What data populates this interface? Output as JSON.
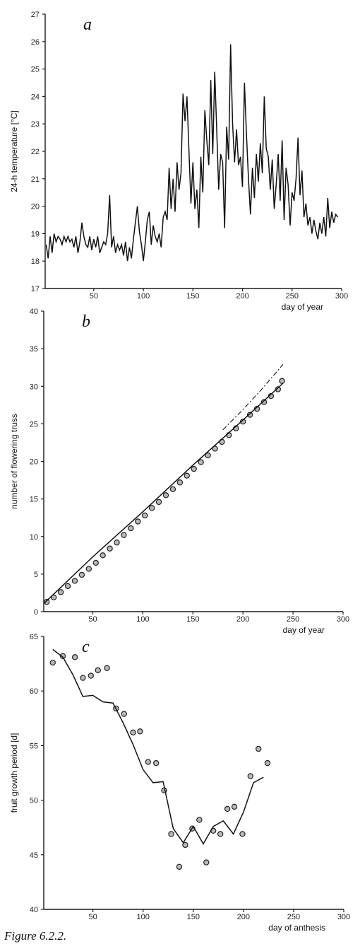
{
  "chart_data": [
    {
      "type": "line",
      "panel": "a",
      "title": "",
      "xlabel": "day of year",
      "ylabel": "24-h temperature [°C]",
      "xlim": [
        1,
        300
      ],
      "ylim": [
        17,
        27
      ],
      "xticks": [
        50,
        100,
        150,
        200,
        250,
        300
      ],
      "yticks": [
        17,
        18,
        19,
        20,
        21,
        22,
        23,
        24,
        25,
        26,
        27
      ],
      "series": [
        {
          "x": [
            2,
            4,
            6,
            8,
            10,
            12,
            14,
            16,
            18,
            20,
            22,
            24,
            26,
            28,
            30,
            32,
            34,
            36,
            38,
            40,
            42,
            44,
            46,
            48,
            50,
            52,
            54,
            56,
            58,
            60,
            62,
            64,
            66,
            68,
            70,
            72,
            74,
            76,
            78,
            80,
            82,
            84,
            86,
            88,
            90,
            92,
            94,
            96,
            98,
            100,
            102,
            104,
            106,
            108,
            110,
            112,
            114,
            116,
            118,
            120,
            122,
            124,
            126,
            128,
            130,
            132,
            134,
            136,
            138,
            140,
            142,
            144,
            146,
            148,
            150,
            152,
            154,
            156,
            158,
            160,
            162,
            164,
            166,
            168,
            170,
            172,
            174,
            176,
            178,
            180,
            182,
            184,
            186,
            188,
            190,
            192,
            194,
            196,
            198,
            200,
            202,
            204,
            206,
            208,
            210,
            212,
            214,
            216,
            218,
            220,
            222,
            224,
            226,
            228,
            230,
            232,
            234,
            236,
            238,
            240,
            242,
            244,
            246,
            248,
            250,
            252,
            254,
            256,
            258,
            260,
            262,
            264,
            266,
            268,
            270,
            272,
            274,
            276,
            278,
            280,
            282,
            284,
            286,
            288,
            290,
            292,
            294,
            296
          ],
          "y": [
            18.6,
            18.1,
            18.9,
            18.3,
            19.0,
            18.7,
            18.9,
            18.8,
            18.6,
            18.9,
            18.7,
            18.9,
            18.7,
            18.8,
            18.5,
            18.9,
            18.3,
            18.7,
            19.4,
            18.9,
            18.6,
            18.5,
            18.9,
            18.4,
            18.8,
            18.5,
            18.9,
            18.3,
            18.5,
            18.7,
            18.6,
            19.0,
            20.4,
            18.5,
            18.9,
            18.3,
            18.6,
            18.4,
            18.6,
            18.2,
            18.7,
            18.0,
            18.5,
            18.1,
            18.8,
            19.4,
            20.0,
            19.1,
            18.6,
            18.0,
            18.7,
            19.5,
            19.8,
            18.6,
            19.3,
            18.9,
            18.7,
            19.0,
            18.5,
            19.6,
            19.8,
            19.5,
            21.4,
            19.9,
            21.0,
            19.8,
            21.6,
            20.6,
            21.2,
            24.1,
            23.1,
            24.0,
            22.0,
            20.1,
            21.6,
            19.9,
            20.6,
            19.2,
            21.8,
            20.5,
            23.5,
            22.4,
            21.5,
            24.6,
            21.9,
            24.9,
            22.8,
            20.6,
            21.9,
            21.6,
            19.2,
            22.9,
            21.7,
            25.9,
            23.0,
            21.6,
            22.8,
            21.5,
            21.8,
            20.7,
            24.5,
            22.6,
            21.0,
            19.7,
            21.4,
            20.3,
            21.9,
            20.9,
            22.3,
            21.2,
            24.0,
            22.1,
            21.8,
            20.6,
            21.7,
            19.9,
            20.8,
            21.9,
            20.2,
            22.4,
            19.5,
            21.4,
            20.8,
            19.3,
            20.5,
            20.2,
            21.0,
            22.5,
            20.4,
            21.3,
            19.6,
            20.1,
            19.3,
            19.6,
            19.0,
            19.5,
            19.1,
            18.8,
            19.4,
            19.0,
            19.6,
            18.9,
            20.3,
            19.2,
            19.8,
            19.4,
            19.7,
            19.6
          ]
        }
      ]
    },
    {
      "type": "line",
      "panel": "b",
      "title": "",
      "xlabel": "day of year",
      "ylabel": "number of flowering truss",
      "xlim": [
        1,
        300
      ],
      "ylim": [
        0,
        40
      ],
      "xticks": [
        50,
        100,
        150,
        200,
        250,
        300
      ],
      "yticks": [
        0,
        5,
        10,
        15,
        20,
        25,
        30,
        35,
        40
      ],
      "series": [
        {
          "style": "observed-points",
          "x": [
            4,
            11,
            18,
            25,
            32,
            39,
            46,
            53,
            60,
            67,
            74,
            81,
            88,
            95,
            102,
            109,
            116,
            123,
            130,
            137,
            144,
            151,
            158,
            165,
            172,
            179,
            186,
            193,
            200,
            207,
            214,
            221,
            228,
            235,
            239
          ],
          "y": [
            1.3,
            1.9,
            2.6,
            3.4,
            4.1,
            4.9,
            5.7,
            6.5,
            7.5,
            8.4,
            9.2,
            10.2,
            11.1,
            12.0,
            12.8,
            13.8,
            14.6,
            15.5,
            16.3,
            17.2,
            18.1,
            19.0,
            19.9,
            20.8,
            21.7,
            22.6,
            23.5,
            24.4,
            25.3,
            26.2,
            27.0,
            27.9,
            28.7,
            29.6,
            30.7
          ]
        },
        {
          "style": "simulated-solid",
          "x": [
            2,
            50,
            100,
            150,
            200,
            240
          ],
          "y": [
            1.2,
            7.3,
            13.3,
            19.5,
            25.5,
            30.4
          ]
        },
        {
          "style": "simulated-dashdot",
          "x": [
            180,
            200,
            220,
            240
          ],
          "y": [
            24.2,
            26.9,
            29.8,
            32.9
          ]
        }
      ]
    },
    {
      "type": "line",
      "panel": "c",
      "title": "",
      "xlabel": "day of anthesis",
      "ylabel": "fruit growth period [d]",
      "xlim": [
        1,
        300
      ],
      "ylim": [
        40,
        65
      ],
      "xticks": [
        50,
        100,
        150,
        200,
        250,
        300
      ],
      "yticks": [
        40,
        45,
        50,
        55,
        60,
        65
      ],
      "series": [
        {
          "style": "observed-points",
          "x": [
            10,
            20,
            32,
            40,
            48,
            55,
            64,
            73,
            81,
            90,
            97,
            105,
            113,
            121,
            128,
            136,
            142,
            149,
            156,
            163,
            170,
            177,
            184,
            191,
            199,
            207,
            215,
            224
          ],
          "y": [
            62.6,
            63.2,
            63.1,
            61.2,
            61.4,
            61.9,
            62.1,
            58.4,
            57.9,
            56.2,
            56.3,
            53.5,
            53.4,
            50.9,
            46.9,
            43.9,
            45.9,
            47.4,
            48.2,
            44.3,
            47.2,
            46.9,
            49.2,
            49.4,
            46.9,
            52.2,
            54.7,
            53.4
          ]
        },
        {
          "style": "simulated-solid",
          "x": [
            10,
            20,
            30,
            40,
            50,
            60,
            70,
            80,
            90,
            100,
            110,
            120,
            130,
            140,
            150,
            160,
            170,
            180,
            190,
            200,
            210,
            220
          ],
          "y": [
            63.8,
            63.1,
            61.5,
            59.5,
            59.6,
            59.0,
            58.9,
            57.1,
            55.1,
            52.8,
            51.6,
            51.7,
            47.4,
            46.1,
            47.6,
            46.0,
            47.6,
            48.1,
            46.9,
            48.9,
            51.6,
            52.1
          ]
        }
      ]
    }
  ],
  "caption": "Figure 6.2.2."
}
